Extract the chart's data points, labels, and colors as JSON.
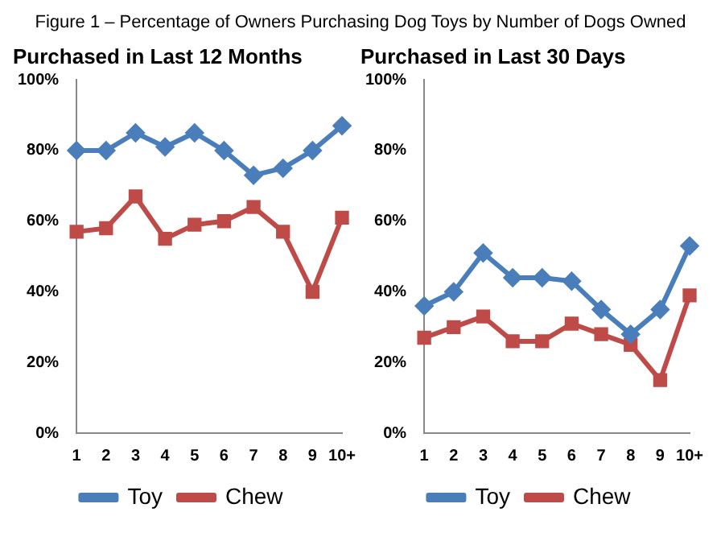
{
  "chart_data": [
    {
      "type": "line",
      "title": "Purchased in Last 12 Months",
      "annotations": [
        "Figure 1 – Percentage of Owners Purchasing Dog Toys by Number of Dogs Owned"
      ],
      "categories": [
        "1",
        "2",
        "3",
        "4",
        "5",
        "6",
        "7",
        "8",
        "9",
        "10+"
      ],
      "series": [
        {
          "name": "Toy",
          "color": "#4a7ebb",
          "marker": "diamond",
          "values": [
            80,
            80,
            85,
            81,
            85,
            80,
            73,
            75,
            80,
            87
          ]
        },
        {
          "name": "Chew",
          "color": "#be4b48",
          "marker": "square",
          "values": [
            57,
            58,
            67,
            55,
            59,
            60,
            64,
            57,
            40,
            61
          ]
        }
      ],
      "ylim": [
        0,
        100
      ],
      "yticks": [
        {
          "value": 0,
          "label": "0%"
        },
        {
          "value": 20,
          "label": "20%"
        },
        {
          "value": 40,
          "label": "40%"
        },
        {
          "value": 60,
          "label": "60%"
        },
        {
          "value": 80,
          "label": "80%"
        },
        {
          "value": 100,
          "label": "100%"
        }
      ],
      "grid": false,
      "legend": "bottom"
    },
    {
      "type": "line",
      "title": "Purchased in Last 30 Days",
      "categories": [
        "1",
        "2",
        "3",
        "4",
        "5",
        "6",
        "7",
        "8",
        "9",
        "10+"
      ],
      "series": [
        {
          "name": "Toy",
          "color": "#4a7ebb",
          "marker": "diamond",
          "values": [
            36,
            40,
            51,
            44,
            44,
            43,
            35,
            28,
            35,
            53
          ]
        },
        {
          "name": "Chew",
          "color": "#be4b48",
          "marker": "square",
          "values": [
            27,
            30,
            33,
            26,
            26,
            31,
            28,
            25,
            15,
            39
          ]
        }
      ],
      "ylim": [
        0,
        100
      ],
      "yticks": [
        {
          "value": 0,
          "label": "0%"
        },
        {
          "value": 20,
          "label": "20%"
        },
        {
          "value": 40,
          "label": "40%"
        },
        {
          "value": 60,
          "label": "60%"
        },
        {
          "value": 80,
          "label": "80%"
        },
        {
          "value": 100,
          "label": "100%"
        }
      ],
      "grid": false,
      "legend": "bottom"
    }
  ]
}
